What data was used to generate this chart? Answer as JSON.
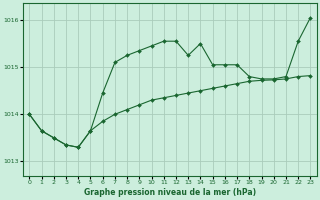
{
  "title": "Graphe pression niveau de la mer (hPa)",
  "bg_color": "#cceedd",
  "grid_color": "#aaccbb",
  "line_color": "#1a6630",
  "xlim": [
    -0.5,
    23.5
  ],
  "ylim": [
    1012.7,
    1016.35
  ],
  "yticks": [
    1013,
    1014,
    1015,
    1016
  ],
  "xticks": [
    0,
    1,
    2,
    3,
    4,
    5,
    6,
    7,
    8,
    9,
    10,
    11,
    12,
    13,
    14,
    15,
    16,
    17,
    18,
    19,
    20,
    21,
    22,
    23
  ],
  "series": [
    {
      "x": [
        0,
        1,
        2,
        3,
        4,
        5,
        6,
        7,
        8,
        9,
        10,
        11,
        12,
        13,
        14,
        15,
        16,
        17,
        18,
        19,
        20,
        21,
        22,
        23
      ],
      "y": [
        1014.0,
        1013.65,
        1013.5,
        1013.35,
        1013.3,
        1013.65,
        1014.45,
        1015.1,
        1015.25,
        1015.35,
        1015.45,
        1015.55,
        1015.55,
        1015.25,
        1015.5,
        1015.05,
        1015.05,
        1015.05,
        1014.8,
        1014.75,
        1014.75,
        1014.8,
        1015.55,
        1016.05
      ]
    },
    {
      "x": [
        0,
        1,
        2,
        3,
        4,
        5,
        6,
        7,
        8,
        9,
        10,
        11,
        12,
        13,
        14,
        15,
        16,
        17,
        18,
        19,
        20,
        21,
        22,
        23
      ],
      "y": [
        1014.0,
        1013.65,
        1013.5,
        1013.35,
        1013.3,
        1013.65,
        1013.85,
        1014.0,
        1014.1,
        1014.2,
        1014.3,
        1014.35,
        1014.4,
        1014.45,
        1014.5,
        1014.55,
        1014.6,
        1014.65,
        1014.7,
        1014.72,
        1014.73,
        1014.75,
        1014.8,
        1014.82
      ]
    }
  ]
}
